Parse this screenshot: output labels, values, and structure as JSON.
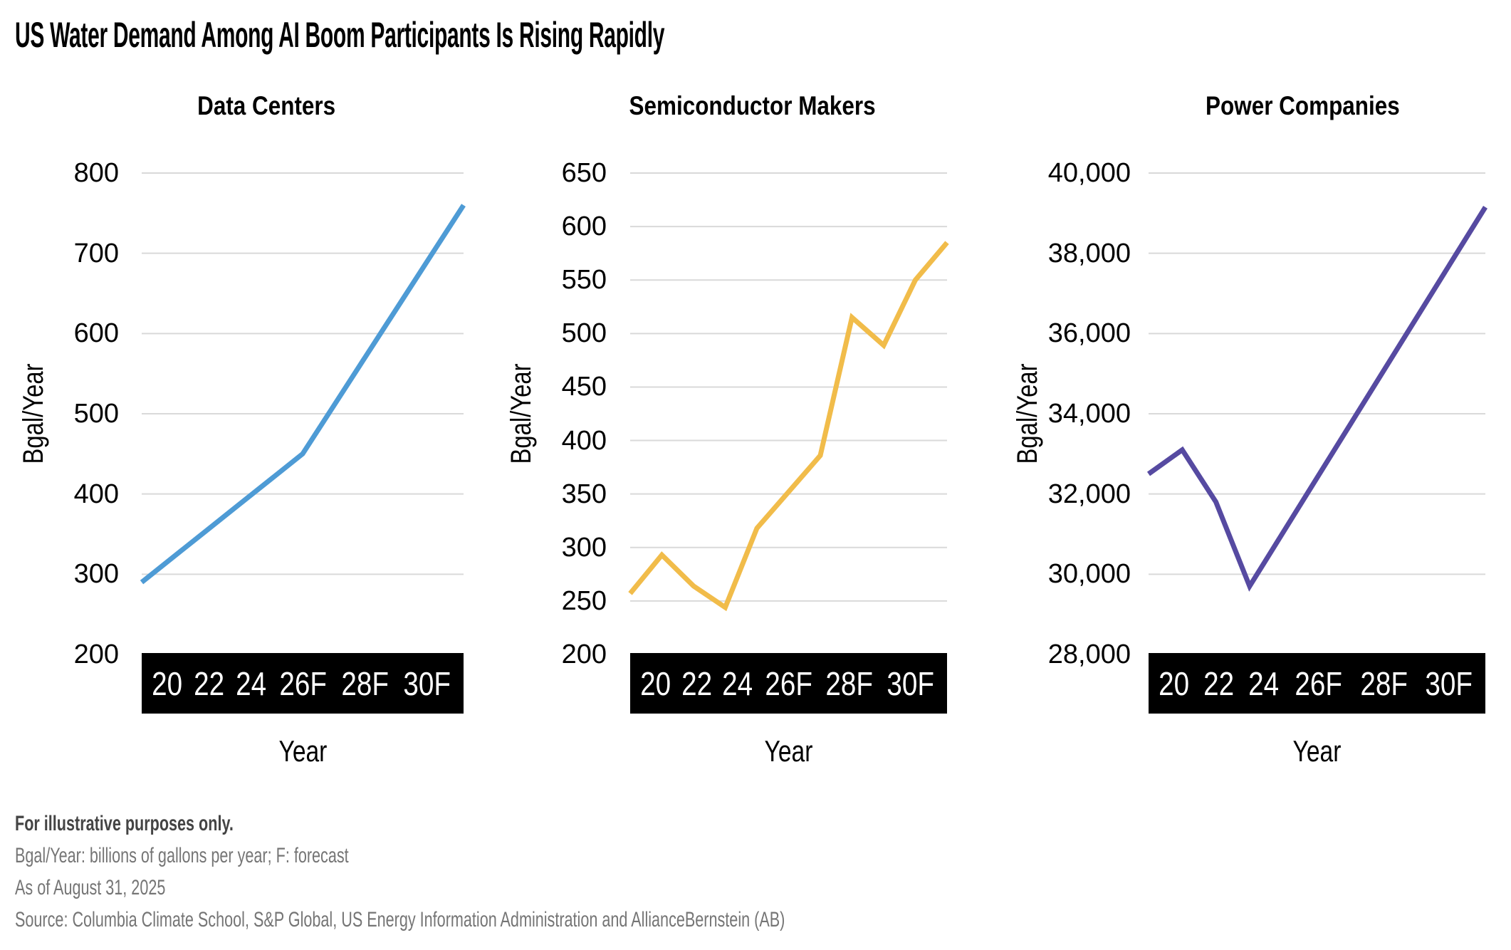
{
  "figure": {
    "title": "US Water Demand Among AI Boom Participants Is Rising Rapidly"
  },
  "chart_data": {
    "type": "line",
    "x": [
      2020,
      2021,
      2022,
      2023,
      2024,
      2025,
      2026,
      2027,
      2028,
      2029,
      2030
    ],
    "xtick_labels": [
      "20",
      "22",
      "24",
      "26F",
      "28F",
      "30F"
    ],
    "grid": true,
    "legend": false,
    "charts": [
      {
        "title": "Data Centers",
        "color": "#4E9BD5",
        "ylabel": "Bgal/Year",
        "xlabel": "Year",
        "ylim": [
          200,
          800
        ],
        "ystep": 100,
        "values": [
          290,
          322,
          354,
          386,
          418,
          450,
          512,
          574,
          636,
          698,
          760
        ]
      },
      {
        "title": "Semiconductor Makers",
        "color": "#F1BC4A",
        "ylabel": "Bgal/Year",
        "xlabel": "Year",
        "ylim": [
          200,
          650
        ],
        "ystep": 50,
        "values": [
          257,
          293,
          264,
          244,
          318,
          352,
          386,
          515,
          489,
          550,
          585
        ]
      },
      {
        "title": "Power Companies",
        "color": "#564AA1",
        "ylabel": "Bgal/Year",
        "xlabel": "Year",
        "ylim": [
          28000,
          40000
        ],
        "ystep": 2000,
        "values": [
          32500,
          33100,
          31800,
          29700,
          31050,
          32400,
          33750,
          35100,
          36450,
          37800,
          39150
        ]
      }
    ]
  },
  "footnotes": [
    "For illustrative purposes only.",
    "Bgal/Year: billions of gallons per year; F: forecast",
    "As of August 31, 2025",
    "Source: Columbia Climate School, S&P Global, US Energy Information Administration and AllianceBernstein (AB)"
  ],
  "colors": {
    "grid_line": "#D9D9D9",
    "axis_bar_background": "#000000",
    "axis_bar_text": "#FFFFFF",
    "title_text": "#000000",
    "footnote_primary": "#444444",
    "footnote_secondary": "#757575"
  }
}
